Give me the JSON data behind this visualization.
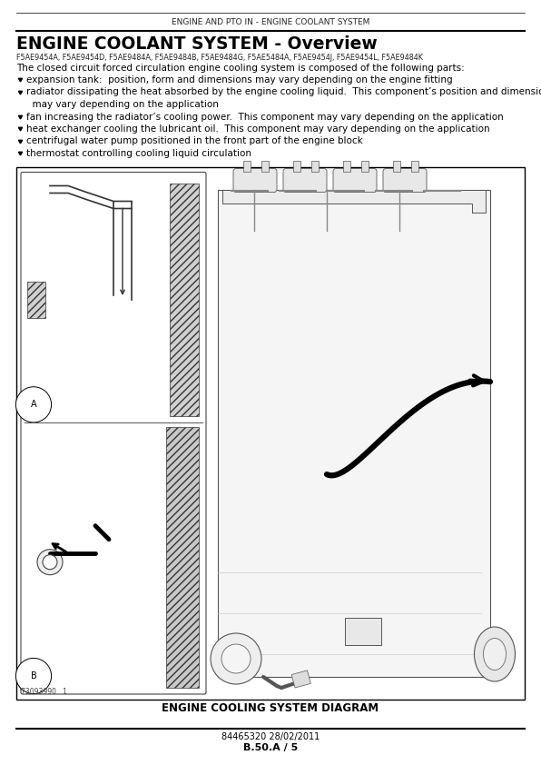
{
  "header_text": "ENGINE AND PTO IN - ENGINE COOLANT SYSTEM",
  "title": "ENGINE COOLANT SYSTEM - Overview",
  "model_codes": "F5AE9454A, F5AE9454D, F5AE9484A, F5AE9484B, F5AE9484G, F5AE5484A, F5AE9454J, F5AE9454L, F5AE9484K",
  "intro_text": "The closed circuit forced circulation engine cooling system is composed of the following parts:",
  "bullet_points": [
    "expansion tank:  position, form and dimensions may vary depending on the engine fitting",
    "radiator dissipating the heat absorbed by the engine cooling liquid.  This component’s position and dimensions",
    "  may vary depending on the application",
    "fan increasing the radiator’s cooling power.  This component may vary depending on the application",
    "heat exchanger cooling the lubricant oil.  This component may vary depending on the application",
    "centrifugal water pump positioned in the front part of the engine block",
    "thermostat controlling cooling liquid circulation"
  ],
  "bullet_flags": [
    true,
    true,
    false,
    true,
    true,
    true,
    true
  ],
  "diagram_caption": "ENGINE COOLING SYSTEM DIAGRAM",
  "diagram_number": "73093990   1",
  "footer_code": "84465320 28/02/2011",
  "footer_page": "B.50.A / 5",
  "bg_color": "#ffffff",
  "text_color": "#000000"
}
